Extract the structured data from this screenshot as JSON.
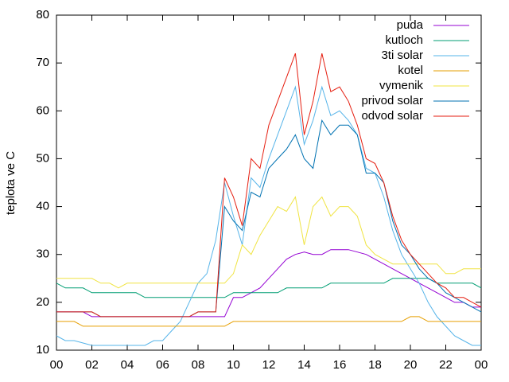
{
  "chart_data": {
    "type": "line",
    "ylabel": "teplota ve C",
    "x": [
      0,
      0.5,
      1,
      1.5,
      2,
      2.5,
      3,
      3.5,
      4,
      4.5,
      5,
      5.5,
      6,
      6.5,
      7,
      7.5,
      8,
      8.5,
      9,
      9.5,
      10,
      10.5,
      11,
      11.5,
      12,
      12.5,
      13,
      13.5,
      14,
      14.5,
      15,
      15.5,
      16,
      16.5,
      17,
      17.5,
      18,
      18.5,
      19,
      19.5,
      20,
      20.5,
      21,
      21.5,
      22,
      22.5,
      23,
      23.5,
      24
    ],
    "xlim": [
      0,
      24
    ],
    "xticks": [
      {
        "value": 0,
        "label": "00"
      },
      {
        "value": 2,
        "label": "02"
      },
      {
        "value": 4,
        "label": "04"
      },
      {
        "value": 6,
        "label": "06"
      },
      {
        "value": 8,
        "label": "08"
      },
      10,
      12,
      14,
      16,
      18,
      20,
      22,
      {
        "value": 24,
        "label": "00"
      }
    ],
    "ylim": [
      10,
      80
    ],
    "yticks": [
      10,
      20,
      30,
      40,
      50,
      60,
      70,
      80
    ],
    "legend": "upper right",
    "series": [
      {
        "name": "puda",
        "color": "#9400d3",
        "values": [
          18,
          18,
          18,
          18,
          17,
          17,
          17,
          17,
          17,
          17,
          17,
          17,
          17,
          17,
          17,
          17,
          17,
          17,
          17,
          17,
          21,
          21,
          22,
          23,
          25,
          27,
          29,
          30,
          30.5,
          30,
          30,
          31,
          31,
          31,
          30.5,
          30,
          29,
          28,
          27,
          26,
          25,
          24,
          23,
          22,
          21,
          20,
          20,
          19,
          19
        ]
      },
      {
        "name": "kutloch",
        "color": "#009e73",
        "values": [
          24,
          23,
          23,
          23,
          22,
          22,
          22,
          22,
          22,
          22,
          21,
          21,
          21,
          21,
          21,
          21,
          21,
          21,
          21,
          21,
          22,
          22,
          22,
          22,
          22,
          22,
          23,
          23,
          23,
          23,
          23,
          24,
          24,
          24,
          24,
          24,
          24,
          24,
          25,
          25,
          25,
          25,
          25,
          24,
          24,
          24,
          24,
          24,
          23
        ]
      },
      {
        "name": "3ti solar",
        "color": "#56b4e9",
        "values": [
          13,
          12,
          12,
          11.5,
          11,
          11,
          11,
          11,
          11,
          11,
          11,
          12,
          12,
          14,
          16,
          20,
          24,
          26,
          33,
          45,
          38,
          32,
          46,
          44,
          50,
          55,
          60,
          65,
          53,
          58,
          65,
          59,
          60,
          58,
          55,
          48,
          47,
          42,
          35,
          30,
          27,
          24,
          20,
          17,
          15,
          13,
          12,
          11,
          11
        ]
      },
      {
        "name": "kotel",
        "color": "#e69f00",
        "values": [
          16,
          16,
          16,
          15,
          15,
          15,
          15,
          15,
          15,
          15,
          15,
          15,
          15,
          15,
          15,
          15,
          15,
          15,
          15,
          15,
          16,
          16,
          16,
          16,
          16,
          16,
          16,
          16,
          16,
          16,
          16,
          16,
          16,
          16,
          16,
          16,
          16,
          16,
          16,
          16,
          17,
          17,
          16,
          16,
          16,
          16,
          16,
          16,
          16
        ]
      },
      {
        "name": "vymenik",
        "color": "#f0e442",
        "values": [
          25,
          25,
          25,
          25,
          25,
          24,
          24,
          23,
          24,
          24,
          24,
          24,
          24,
          24,
          24,
          24,
          24,
          24,
          24,
          24,
          26,
          32,
          30,
          34,
          37,
          40,
          39,
          42,
          32,
          40,
          42,
          38,
          40,
          40,
          38,
          32,
          30,
          29,
          28,
          28,
          28,
          28,
          28,
          28,
          26,
          26,
          27,
          27,
          27
        ]
      },
      {
        "name": "privod solar",
        "color": "#0072b2",
        "values": [
          18,
          18,
          18,
          18,
          18,
          17,
          17,
          17,
          17,
          17,
          17,
          17,
          17,
          17,
          17,
          17,
          18,
          18,
          18,
          40,
          37,
          35,
          43,
          42,
          48,
          50,
          52,
          55,
          50,
          48,
          58,
          55,
          57,
          57,
          55,
          47,
          47,
          45,
          37,
          32,
          30,
          27,
          25,
          24,
          22,
          21,
          20,
          19,
          18
        ]
      },
      {
        "name": "odvod solar",
        "color": "#e51e10",
        "values": [
          18,
          18,
          18,
          18,
          18,
          17,
          17,
          17,
          17,
          17,
          17,
          17,
          17,
          17,
          17,
          17,
          18,
          18,
          18,
          46,
          42,
          36,
          50,
          48,
          57,
          62,
          67,
          72,
          55,
          62,
          72,
          64,
          65,
          62,
          57,
          50,
          49,
          45,
          38,
          33,
          30,
          28,
          26,
          24,
          23,
          21,
          21,
          20,
          19
        ]
      }
    ]
  }
}
